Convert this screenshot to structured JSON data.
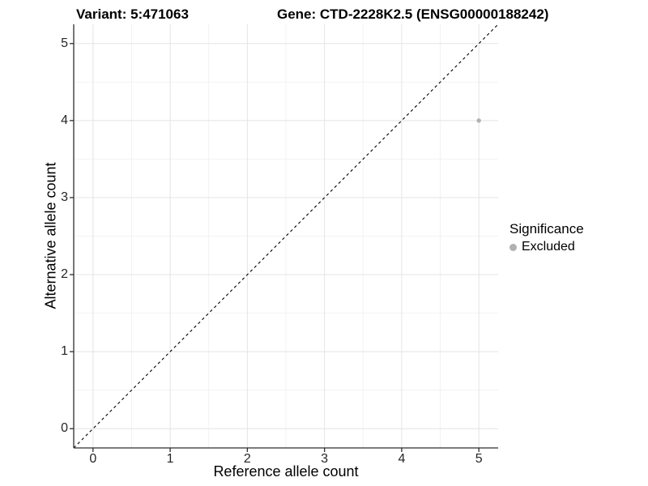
{
  "title": {
    "variant": "Variant: 5:471063",
    "gene": "Gene: CTD-2228K2.5 (ENSG00000188242)"
  },
  "chart_data": {
    "type": "scatter",
    "title": "Variant: 5:471063    Gene: CTD-2228K2.5 (ENSG00000188242)",
    "xlabel": "Reference allele count",
    "ylabel": "Alternative allele count",
    "xlim": [
      -0.25,
      5.25
    ],
    "ylim": [
      -0.25,
      5.25
    ],
    "x_ticks": [
      0,
      1,
      2,
      3,
      4,
      5
    ],
    "y_ticks": [
      0,
      1,
      2,
      3,
      4,
      5
    ],
    "x_minor_ticks": [
      0.5,
      1.5,
      2.5,
      3.5,
      4.5
    ],
    "y_minor_ticks": [
      0.5,
      1.5,
      2.5,
      3.5,
      4.5
    ],
    "grid": "major+minor",
    "series": [
      {
        "name": "Excluded",
        "color": "#b1b1b1",
        "points": [
          {
            "x": 5,
            "y": 4
          }
        ]
      }
    ],
    "identity_line": {
      "slope": 1,
      "intercept": 0,
      "style": "dashed",
      "color": "#000000"
    },
    "legend": {
      "title": "Significance",
      "position": "right",
      "items": [
        {
          "label": "Excluded",
          "color": "#b1b1b1"
        }
      ]
    }
  },
  "colors": {
    "background": "#ffffff",
    "axis_line": "#2e2e2e",
    "grid_major": "#e4e4e4",
    "grid_minor": "#f2f2f2",
    "tick_text": "#262626",
    "point": "#b1b1b1"
  }
}
